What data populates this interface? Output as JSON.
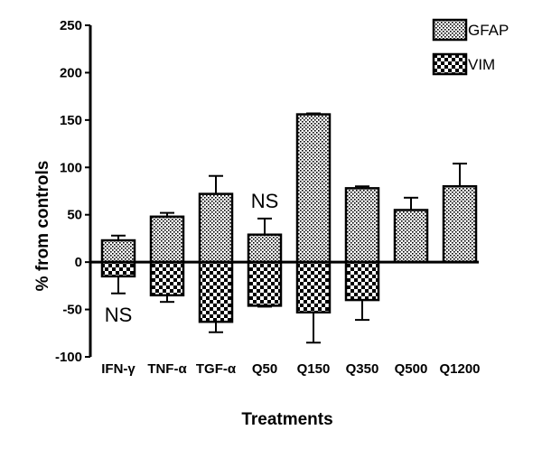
{
  "chart_data": {
    "type": "bar",
    "title": "",
    "xlabel": "Treatments",
    "ylabel": "% from controls",
    "ylim": [
      -100,
      250
    ],
    "yticks": [
      -100,
      -50,
      0,
      50,
      100,
      150,
      200,
      250
    ],
    "categories": [
      "IFN-γ",
      "TNF-α",
      "TGF-α",
      "Q50",
      "Q150",
      "Q350",
      "Q500",
      "Q1200"
    ],
    "series": [
      {
        "name": "GFAP",
        "pattern": "dots",
        "values": [
          23,
          48,
          72,
          29,
          156,
          78,
          55,
          80
        ],
        "error": [
          5,
          4,
          19,
          17,
          1,
          2,
          13,
          24
        ]
      },
      {
        "name": "VIM",
        "pattern": "checker",
        "values": [
          -15,
          -35,
          -63,
          -46,
          -53,
          -40,
          0,
          0
        ],
        "error": [
          18,
          7,
          11,
          1,
          32,
          21,
          0,
          0
        ]
      }
    ],
    "annotations": [
      {
        "text": "NS",
        "category": "IFN-γ",
        "y": -55
      },
      {
        "text": "NS",
        "category": "Q50",
        "y": 65
      }
    ],
    "legend_position": "top-right",
    "grid": false
  }
}
